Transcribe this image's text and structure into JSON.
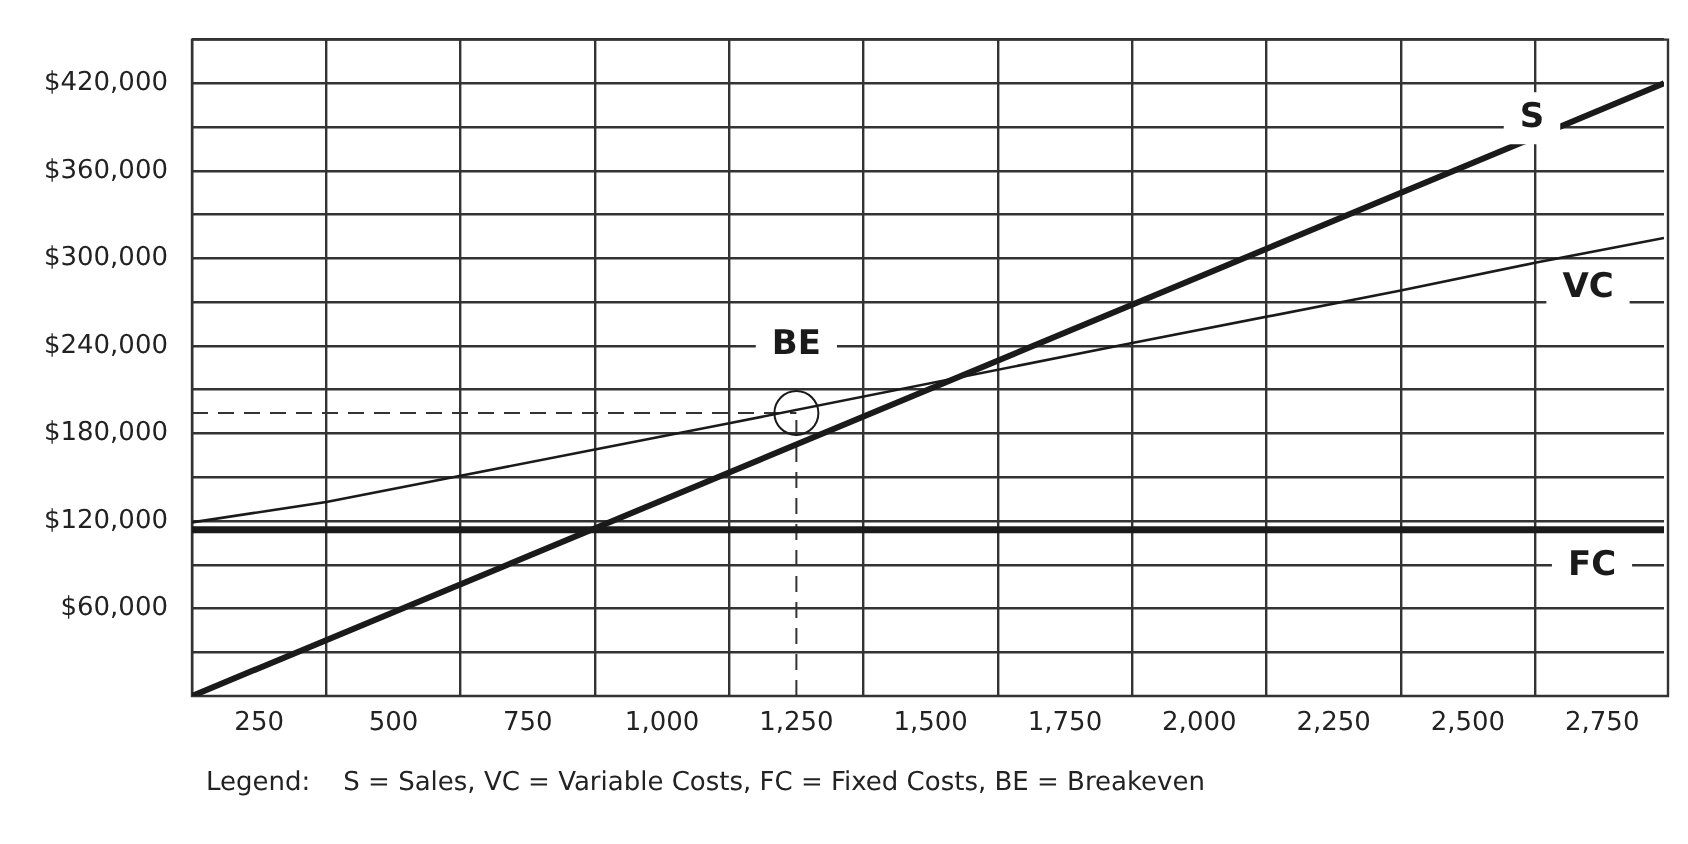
{
  "chart_data": {
    "type": "line",
    "xlim": [
      125,
      2865
    ],
    "ylim": [
      0,
      450000
    ],
    "xticks": [
      {
        "value": 125,
        "label": null
      },
      250,
      {
        "value": 375,
        "label": null
      },
      500,
      {
        "value": 625,
        "label": null
      },
      750,
      {
        "value": 875,
        "label": null
      },
      {
        "value": 1000,
        "label": "1,000"
      },
      {
        "value": 1125,
        "label": null
      },
      {
        "value": 1250,
        "label": "1,250"
      },
      {
        "value": 1375,
        "label": null
      },
      {
        "value": 1500,
        "label": "1,500"
      },
      {
        "value": 1625,
        "label": null
      },
      {
        "value": 1750,
        "label": "1,750"
      },
      {
        "value": 1875,
        "label": null
      },
      {
        "value": 2000,
        "label": "2,000"
      },
      {
        "value": 2125,
        "label": null
      },
      {
        "value": 2250,
        "label": "2,250"
      },
      {
        "value": 2375,
        "label": null
      },
      {
        "value": 2500,
        "label": "2,500"
      },
      {
        "value": 2625,
        "label": null
      },
      {
        "value": 2750,
        "label": "2,750"
      }
    ],
    "yticks": [
      {
        "value": 30000,
        "label": null
      },
      {
        "value": 60000,
        "label": "$60,000"
      },
      {
        "value": 90000,
        "label": null
      },
      {
        "value": 120000,
        "label": "$120,000"
      },
      {
        "value": 150000,
        "label": null
      },
      {
        "value": 180000,
        "label": "$180,000"
      },
      {
        "value": 210000,
        "label": null
      },
      {
        "value": 240000,
        "label": "$240,000"
      },
      {
        "value": 270000,
        "label": null
      },
      {
        "value": 300000,
        "label": "$300,000"
      },
      {
        "value": 330000,
        "label": null
      },
      {
        "value": 360000,
        "label": "$360,000"
      },
      {
        "value": 390000,
        "label": null
      },
      {
        "value": 420000,
        "label": "$420,000"
      },
      {
        "value": 450000,
        "label": null
      }
    ],
    "grid": true,
    "legend": false,
    "marker": "none",
    "series": [
      {
        "name": "S",
        "color": "#1a1a1a",
        "x": [
          125,
          2865
        ],
        "values": [
          0,
          420000
        ]
      },
      {
        "name": "VC",
        "color": "#1a1a1a",
        "x": [
          125,
          375,
          625,
          875,
          1125,
          1875,
          2375,
          2625,
          2865
        ],
        "values": [
          119000,
          133000,
          151000,
          169000,
          187000,
          242000,
          278000,
          297000,
          314000
        ]
      },
      {
        "name": "FC",
        "color": "#1a1a1a",
        "x": [
          125,
          2865
        ],
        "values": [
          114000,
          114000
        ]
      },
      {
        "name": "BE",
        "type": "scatter",
        "marker": "circle",
        "color": "#1a1a1a",
        "x": [
          1250
        ],
        "values": [
          194000
        ]
      }
    ],
    "ref_lines": [
      {
        "axis": "y",
        "value": 194000,
        "line_style": "dashed",
        "color": "#333333"
      },
      {
        "axis": "x",
        "value": 1250,
        "line_style": "dashed",
        "color": "#333333"
      }
    ],
    "annotations": [
      "Legend:    S = Sales, VC = Variable Costs, FC = Fixed Costs, BE = Breakeven"
    ]
  }
}
